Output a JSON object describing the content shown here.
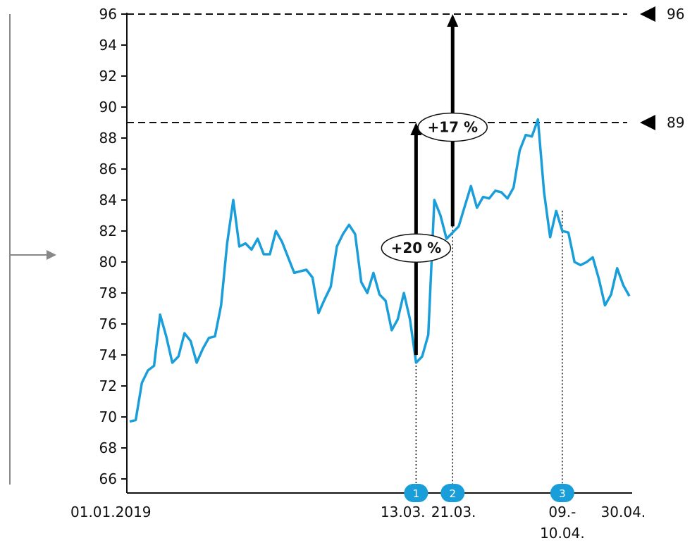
{
  "chart_data": {
    "type": "line",
    "title": "",
    "xlabel": "",
    "ylabel": "",
    "ylim": [
      65,
      96
    ],
    "yticks": [
      66,
      68,
      70,
      72,
      74,
      76,
      78,
      80,
      82,
      84,
      86,
      88,
      90,
      92,
      94,
      96
    ],
    "x_tick_labels": [
      {
        "label": "01.01.2019",
        "index": 0
      },
      {
        "label": "13.03.",
        "index": 46
      },
      {
        "label": "21.03.",
        "index": 52
      },
      {
        "label": "09.-",
        "label2": "10.04.",
        "index": 67
      },
      {
        "label": "30.04.",
        "index": 81
      }
    ],
    "series": [
      {
        "color": "#1a9ed9",
        "values": [
          69.7,
          69.8,
          72.2,
          73.0,
          73.3,
          76.6,
          75.2,
          73.5,
          73.9,
          75.4,
          74.9,
          73.5,
          74.4,
          75.1,
          75.2,
          77.2,
          81.2,
          84.0,
          81.0,
          81.2,
          80.8,
          81.5,
          80.5,
          80.5,
          82.0,
          81.3,
          80.3,
          79.3,
          79.4,
          79.5,
          79.0,
          76.7,
          77.6,
          78.4,
          81.0,
          81.8,
          82.4,
          81.8,
          78.7,
          78.0,
          79.3,
          77.9,
          77.5,
          75.6,
          76.3,
          78.0,
          76.3,
          73.5,
          73.9,
          75.3,
          84.0,
          83.0,
          81.5,
          81.9,
          82.3,
          83.6,
          84.9,
          83.5,
          84.2,
          84.1,
          84.6,
          84.5,
          84.1,
          84.8,
          87.2,
          88.2,
          88.1,
          89.2,
          84.5,
          81.6,
          83.3,
          82.0,
          81.9,
          80.0,
          79.8,
          80.0,
          80.3,
          78.9,
          77.2,
          77.9,
          79.6,
          78.5,
          77.8
        ]
      }
    ],
    "reference_lines": [
      {
        "value": 96,
        "label": "96"
      },
      {
        "value": 89,
        "label": "89"
      }
    ],
    "arrows": [
      {
        "from": 74,
        "to": 89,
        "index": 47,
        "label": "+20 %"
      },
      {
        "from": 82.3,
        "to": 96,
        "index": 53,
        "label": "+17 %"
      }
    ],
    "markers": [
      {
        "label": "1",
        "index": 47,
        "value": 74
      },
      {
        "label": "2",
        "index": 53,
        "value": 82.3
      },
      {
        "label": "3",
        "index": 71,
        "value": 83.3
      }
    ],
    "grid": false,
    "legend": "none"
  }
}
